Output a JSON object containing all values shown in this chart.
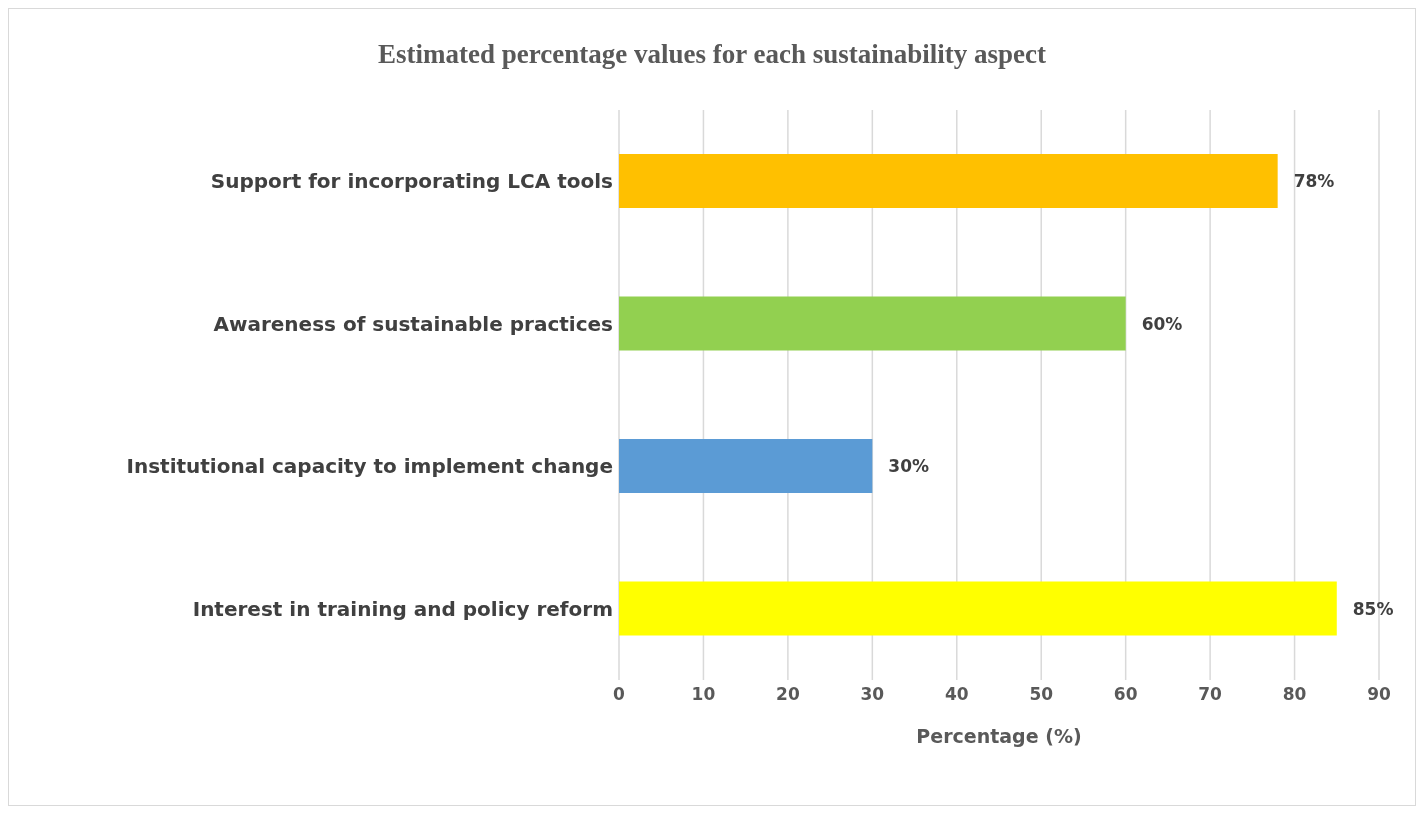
{
  "chart_data": {
    "type": "bar",
    "orientation": "horizontal",
    "title": "Estimated percentage values for each sustainability aspect",
    "xlabel": "Percentage (%)",
    "categories": [
      "Support for incorporating LCA tools",
      "Awareness of sustainable practices",
      "Institutional capacity to implement change",
      "Interest in training and policy reform"
    ],
    "values": [
      78,
      60,
      30,
      85
    ],
    "colors": [
      "#ffc000",
      "#92d050",
      "#5b9bd5",
      "#ffff00"
    ],
    "value_labels": [
      "78%",
      "60%",
      "30%",
      "85%"
    ],
    "xlim": [
      0,
      90
    ],
    "xticks": [
      0,
      10,
      20,
      30,
      40,
      50,
      60,
      70,
      80,
      90
    ],
    "grid": "x"
  }
}
